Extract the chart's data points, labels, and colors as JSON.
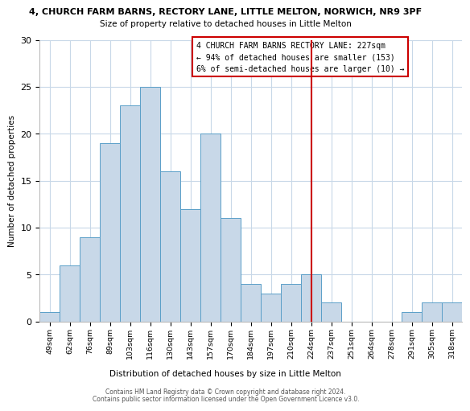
{
  "title_line1": "4, CHURCH FARM BARNS, RECTORY LANE, LITTLE MELTON, NORWICH, NR9 3PF",
  "title_line2": "Size of property relative to detached houses in Little Melton",
  "xlabel": "Distribution of detached houses by size in Little Melton",
  "ylabel": "Number of detached properties",
  "bin_labels": [
    "49sqm",
    "62sqm",
    "76sqm",
    "89sqm",
    "103sqm",
    "116sqm",
    "130sqm",
    "143sqm",
    "157sqm",
    "170sqm",
    "184sqm",
    "197sqm",
    "210sqm",
    "224sqm",
    "237sqm",
    "251sqm",
    "264sqm",
    "278sqm",
    "291sqm",
    "305sqm",
    "318sqm"
  ],
  "bar_heights": [
    1,
    6,
    9,
    19,
    23,
    25,
    16,
    12,
    20,
    11,
    4,
    3,
    4,
    5,
    2,
    0,
    0,
    0,
    1,
    2,
    2
  ],
  "bar_color": "#c8d8e8",
  "bar_edge_color": "#5a9fc8",
  "vline_x": 13,
  "vline_color": "#cc0000",
  "ylim": [
    0,
    30
  ],
  "yticks": [
    0,
    5,
    10,
    15,
    20,
    25,
    30
  ],
  "annotation_title": "4 CHURCH FARM BARNS RECTORY LANE: 227sqm",
  "annotation_line2": "← 94% of detached houses are smaller (153)",
  "annotation_line3": "6% of semi-detached houses are larger (10) →",
  "footer_line1": "Contains HM Land Registry data © Crown copyright and database right 2024.",
  "footer_line2": "Contains public sector information licensed under the Open Government Licence v3.0.",
  "background_color": "#ffffff",
  "grid_color": "#c8d8e8"
}
